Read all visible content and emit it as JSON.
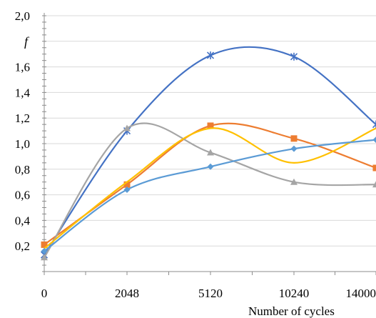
{
  "chart_data": {
    "type": "line",
    "xlabel": "Number of cycles",
    "ylabel": "f",
    "categories": [
      "0",
      "2048",
      "5120",
      "10240",
      "14000"
    ],
    "ylim": [
      0,
      2.0
    ],
    "yticks": [
      "2,0",
      "1,6",
      "1,4",
      "1,2",
      "1,0",
      "0,8",
      "0,6",
      "0,4",
      "0,2"
    ],
    "grid": true,
    "series": [
      {
        "color": "#4472c4",
        "marker": "star",
        "values": [
          0.13,
          1.1,
          1.69,
          1.68,
          1.15
        ]
      },
      {
        "color": "#ed7d31",
        "marker": "square",
        "values": [
          0.21,
          0.68,
          1.14,
          1.04,
          0.81
        ]
      },
      {
        "color": "#a5a5a5",
        "marker": "triangle",
        "values": [
          0.11,
          1.12,
          0.93,
          0.7,
          0.68
        ]
      },
      {
        "color": "#ffc000",
        "marker": "none",
        "values": [
          0.18,
          0.7,
          1.12,
          0.85,
          1.12
        ]
      },
      {
        "color": "#5b9bd5",
        "marker": "diamond",
        "values": [
          0.16,
          0.64,
          0.82,
          0.96,
          1.03
        ]
      }
    ]
  }
}
